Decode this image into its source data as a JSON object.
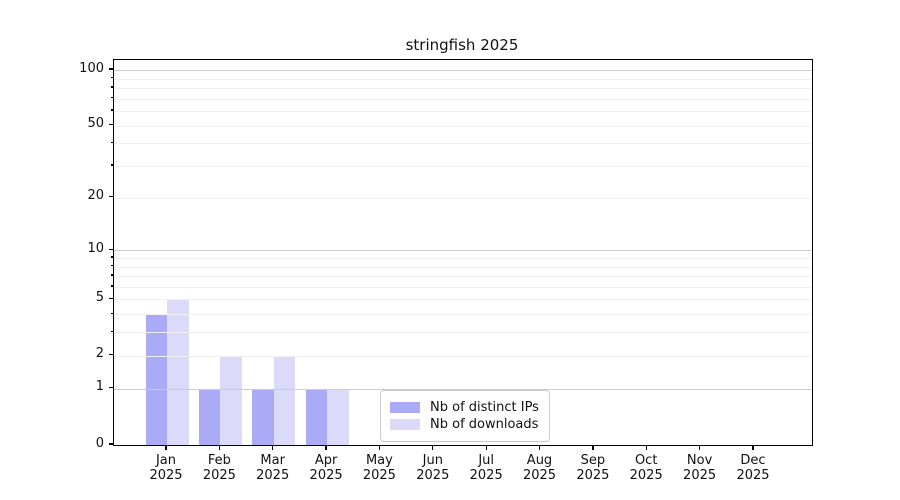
{
  "chart_data": {
    "type": "bar",
    "title": "stringfish 2025",
    "categories": [
      "Jan",
      "Feb",
      "Mar",
      "Apr",
      "May",
      "Jun",
      "Jul",
      "Aug",
      "Sep",
      "Oct",
      "Nov",
      "Dec"
    ],
    "year": "2025",
    "series": [
      {
        "name": "Nb of distinct IPs",
        "color": "#abaaf6",
        "values": [
          4,
          1,
          1,
          1,
          0,
          0,
          0,
          0,
          0,
          0,
          0,
          0
        ]
      },
      {
        "name": "Nb of downloads",
        "color": "#dbdaf9",
        "values": [
          5,
          2,
          2,
          1,
          0,
          0,
          0,
          0,
          0,
          0,
          0,
          0
        ]
      }
    ],
    "y_axis": {
      "scale": "log1p",
      "tick_values": [
        0,
        1,
        2,
        5,
        10,
        20,
        50,
        100
      ],
      "major_grid_values": [
        1,
        10,
        100
      ],
      "minor_grid_values": [
        2,
        3,
        4,
        5,
        6,
        7,
        8,
        9,
        20,
        30,
        40,
        50,
        60,
        70,
        80,
        90
      ],
      "max": 100
    },
    "x_axis": {
      "label_line2": "2025"
    },
    "legend": {
      "entries": [
        "Nb of distinct IPs",
        "Nb of downloads"
      ]
    },
    "grid": true,
    "colors": {
      "major_grid": "#cccccc",
      "minor_grid": "#f0f0f0",
      "spine": "#000000",
      "text": "#111111"
    }
  }
}
